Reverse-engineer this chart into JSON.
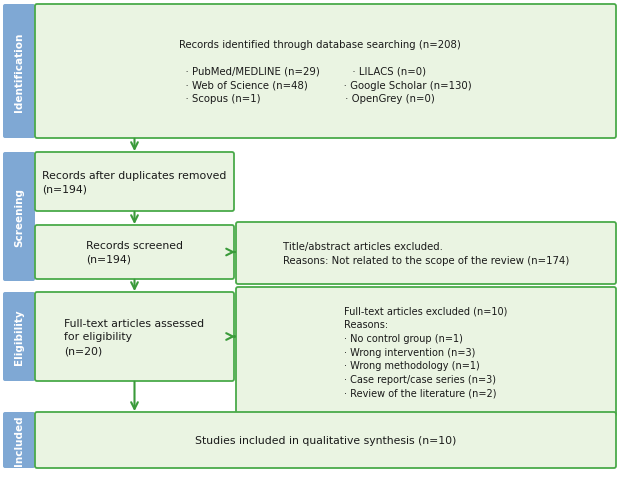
{
  "background_color": "#ffffff",
  "sidebar_color": "#7fa8d4",
  "box_fill_color": "#eaf4e2",
  "box_edge_color": "#4aaa4a",
  "arrow_color": "#3a9a3a",
  "sidebar_labels": [
    "Identification",
    "Screening",
    "Eligibility",
    "Included"
  ],
  "box1_text_title": "Records identified through database searching (n=208)",
  "box1_text_body": "  · PubMed/MEDLINE (n=29)          · LILACS (n=0)\n  · Web of Science (n=48)           · Google Scholar (n=130)\n  · Scopus (n=1)                          · OpenGrey (n=0)",
  "box2_text": "Records after duplicates removed\n(n=194)",
  "box3a_text": "Records screened\n(n=194)",
  "box3b_text": "Title/abstract articles excluded.\nReasons: Not related to the scope of the review (n=174)",
  "box4a_text": "Full-text articles assessed\nfor eligibility\n(n=20)",
  "box4b_text": "Full-text articles excluded (n=10)\nReasons:\n· No control group (n=1)\n· Wrong intervention (n=3)\n· Wrong methodology (n=1)\n· Case report/case series (n=3)\n· Review of the literature (n=2)",
  "box5_text": "Studies included in qualitative synthesis (n=10)",
  "text_color": "#1a1a1a",
  "fontsize": 7.8,
  "sidebar_fontsize": 7.5
}
